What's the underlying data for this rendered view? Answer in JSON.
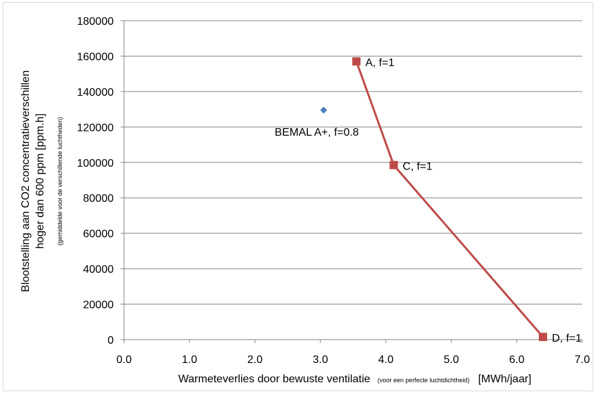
{
  "chart_data": {
    "type": "scatter",
    "title": "",
    "xlabel": {
      "main": "Warmeteverlies  door bewuste ventilatie",
      "note": "(voor een perfecte luchtdichtheid)",
      "unit": "[MWh/jaar]"
    },
    "ylabel": {
      "line1": "Blootstelling aan CO2 concentratieverschillen",
      "line2": "hoger dan 600 ppm [ppm.h]",
      "note": "(gemiddelde voor de verschillende luchtheden)"
    },
    "xlim": [
      0,
      7
    ],
    "ylim": [
      0,
      180000
    ],
    "x_ticks": [
      "0.0",
      "1.0",
      "2.0",
      "3.0",
      "4.0",
      "5.0",
      "6.0",
      "7.0"
    ],
    "y_ticks": [
      "0",
      "20000",
      "40000",
      "60000",
      "80000",
      "100000",
      "120000",
      "140000",
      "160000",
      "180000"
    ],
    "grid": "horizontal",
    "series": [
      {
        "points": [
          {
            "x": 3.05,
            "y": 129500,
            "label": "BEMAL A+, f=0.8"
          }
        ],
        "color": "#4a7ebb",
        "marker": "diamond",
        "line": false
      },
      {
        "points": [
          {
            "x": 3.55,
            "y": 157000,
            "label": "A, f=1"
          },
          {
            "x": 4.12,
            "y": 98500,
            "label": "C, f=1"
          },
          {
            "x": 6.4,
            "y": 1500,
            "label": "D, f=1"
          }
        ],
        "color": "#be4b48",
        "marker": "square",
        "line": true
      }
    ]
  }
}
